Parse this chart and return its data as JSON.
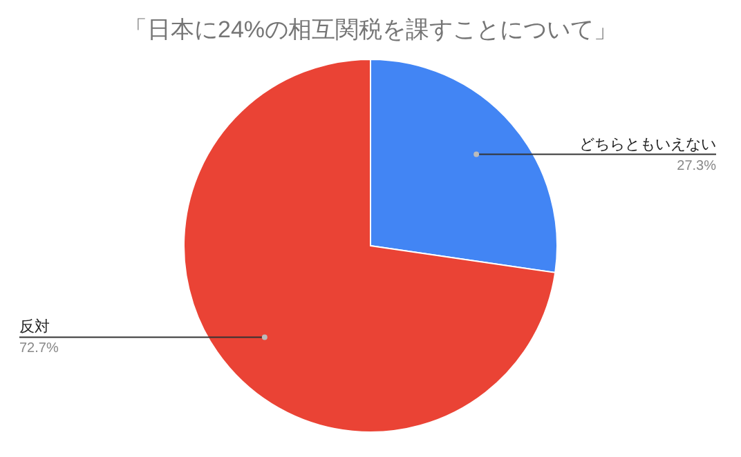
{
  "chart_data": {
    "type": "pie",
    "title": "「日本に24%の相互関税を課すことについて」",
    "categories": [
      "どちらともいえない",
      "反対"
    ],
    "values": [
      27.3,
      72.7
    ],
    "colors": [
      "#4285f4",
      "#ea4335"
    ],
    "value_labels": [
      "27.3%",
      "72.7%"
    ]
  }
}
